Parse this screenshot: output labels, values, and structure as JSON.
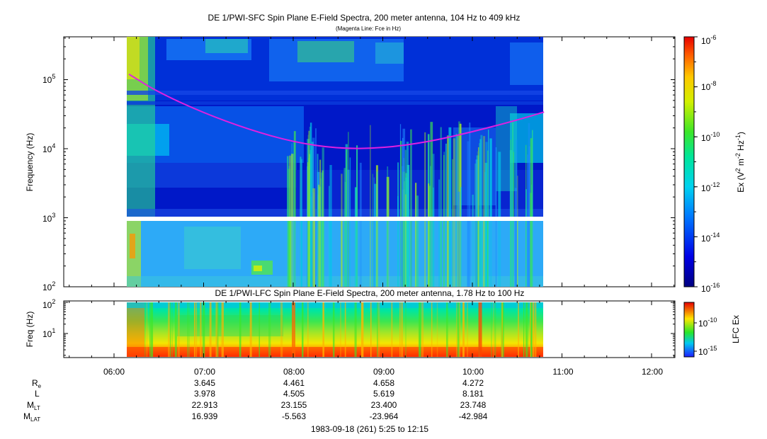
{
  "chart_data": [
    {
      "type": "heatmap",
      "title": "DE 1/PWI-SFC  Spin Plane E-Field Spectra, 200 meter antenna, 104 Hz to 409 kHz",
      "subtitle": "(Magenta Line: Fce in Hz)",
      "ylabel": "Frequency (Hz)",
      "yscale": "log",
      "ylim": [
        100,
        409000
      ],
      "y_ticks": [
        {
          "value": 100,
          "base": "10",
          "exp": "2"
        },
        {
          "value": 1000,
          "base": "10",
          "exp": "3"
        },
        {
          "value": 10000,
          "base": "10",
          "exp": "4"
        },
        {
          "value": 100000,
          "base": "10",
          "exp": "5"
        }
      ],
      "x_range_ut": [
        "05:25",
        "12:15"
      ],
      "data_coverage_ut": [
        "06:10",
        "10:48"
      ],
      "fce_curve": {
        "color": "#e020e0",
        "time_ut": [
          "06:10",
          "06:30",
          "07:00",
          "07:30",
          "08:00",
          "08:30",
          "09:00",
          "09:30",
          "10:00",
          "10:30",
          "10:48"
        ],
        "freq_hz": [
          120000,
          65000,
          33000,
          19000,
          12500,
          10000,
          10200,
          12500,
          17500,
          26000,
          34000
        ]
      },
      "colorbar": {
        "label_parts": [
          "Ex (V",
          "2",
          " m",
          "-2",
          " Hz",
          "-1",
          ")"
        ],
        "scale": "log",
        "range": [
          1e-16,
          1e-06
        ],
        "ticks": [
          {
            "value": 1e-06,
            "base": "10",
            "exp": "-6"
          },
          {
            "value": 1e-08,
            "base": "10",
            "exp": "-8"
          },
          {
            "value": 1e-10,
            "base": "10",
            "exp": "-10"
          },
          {
            "value": 1e-12,
            "base": "10",
            "exp": "-12"
          },
          {
            "value": 1e-14,
            "base": "10",
            "exp": "-14"
          },
          {
            "value": 1e-16,
            "base": "10",
            "exp": "-16"
          }
        ]
      }
    },
    {
      "type": "heatmap",
      "title": "DE 1/PWI-LFC  Spin Plane E-Field Spectra, 200 meter antenna, 1.78 Hz to 100 Hz",
      "ylabel": "Freq (Hz)",
      "yscale": "log",
      "ylim": [
        1.78,
        100
      ],
      "y_ticks": [
        {
          "value": 10,
          "label": "10",
          "exp": "1"
        },
        {
          "value": 100,
          "label": "10",
          "exp": "2"
        }
      ],
      "colorbar": {
        "label": "LFC Ex",
        "scale": "log",
        "ticks": [
          {
            "value": 1e-10,
            "base": "10",
            "exp": "-10"
          },
          {
            "value": 1e-15,
            "base": "10",
            "exp": "-15"
          }
        ]
      }
    }
  ],
  "time_axis": {
    "ticks": [
      "06:00",
      "07:00",
      "08:00",
      "09:00",
      "10:00",
      "11:00",
      "12:00"
    ],
    "footer": "1983-09-18 (261) 5:25 to 12:15"
  },
  "ephemeris": {
    "times": [
      "07:00",
      "08:00",
      "09:00",
      "10:00"
    ],
    "rows": [
      {
        "name": "R",
        "sub": "e",
        "values": [
          "3.645",
          "4.461",
          "4.658",
          "4.272"
        ]
      },
      {
        "name": "L",
        "sub": "",
        "values": [
          "3.978",
          "4.505",
          "5.619",
          "8.181"
        ]
      },
      {
        "name": "M",
        "sub": "LT",
        "values": [
          "22.913",
          "23.155",
          "23.400",
          "23.748"
        ]
      },
      {
        "name": "M",
        "sub": "LAT",
        "values": [
          "16.939",
          "-5.563",
          "-23.964",
          "-42.984"
        ]
      }
    ]
  },
  "colors": {
    "low": "#000080",
    "mid_low": "#0078ff",
    "mid": "#00e6d2",
    "mid_high": "#28e628",
    "high": "#ffe600",
    "max": "#e60000",
    "fce": "#e020e0"
  }
}
